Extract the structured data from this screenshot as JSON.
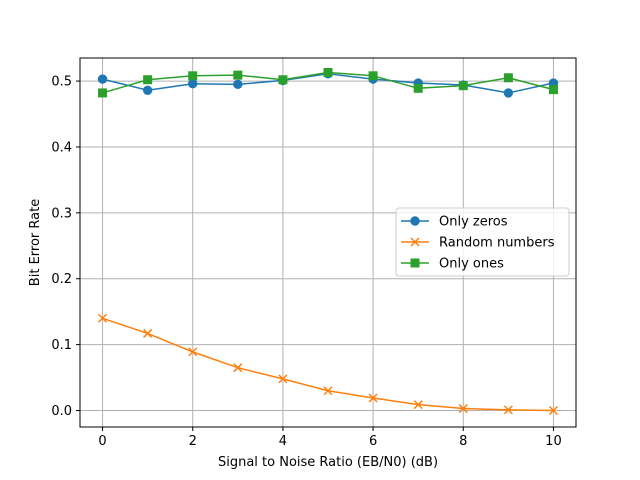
{
  "chart_data": {
    "type": "line",
    "xlabel": "Signal to Noise Ratio (EB/N0) (dB)",
    "ylabel": "Bit Error Rate",
    "xlim": [
      -0.5,
      10.5
    ],
    "ylim": [
      -0.025,
      0.535
    ],
    "xticks": [
      0,
      2,
      4,
      6,
      8,
      10
    ],
    "yticks": [
      0.0,
      0.1,
      0.2,
      0.3,
      0.4,
      0.5
    ],
    "ytick_labels": [
      "0.0",
      "0.1",
      "0.2",
      "0.3",
      "0.4",
      "0.5"
    ],
    "grid": true,
    "legend_position": "center-right",
    "x": [
      0,
      1,
      2,
      3,
      4,
      5,
      6,
      7,
      8,
      9,
      10
    ],
    "series": [
      {
        "name": "Only zeros",
        "color": "#1f77b4",
        "marker": "circle",
        "values": [
          0.503,
          0.486,
          0.496,
          0.495,
          0.501,
          0.511,
          0.503,
          0.497,
          0.494,
          0.482,
          0.497
        ]
      },
      {
        "name": "Random numbers",
        "color": "#ff7f0e",
        "marker": "x",
        "values": [
          0.14,
          0.117,
          0.089,
          0.065,
          0.048,
          0.03,
          0.019,
          0.009,
          0.003,
          0.001,
          0.0
        ]
      },
      {
        "name": "Only ones",
        "color": "#2ca02c",
        "marker": "square",
        "values": [
          0.482,
          0.502,
          0.508,
          0.509,
          0.502,
          0.513,
          0.508,
          0.489,
          0.493,
          0.505,
          0.487
        ]
      }
    ]
  }
}
